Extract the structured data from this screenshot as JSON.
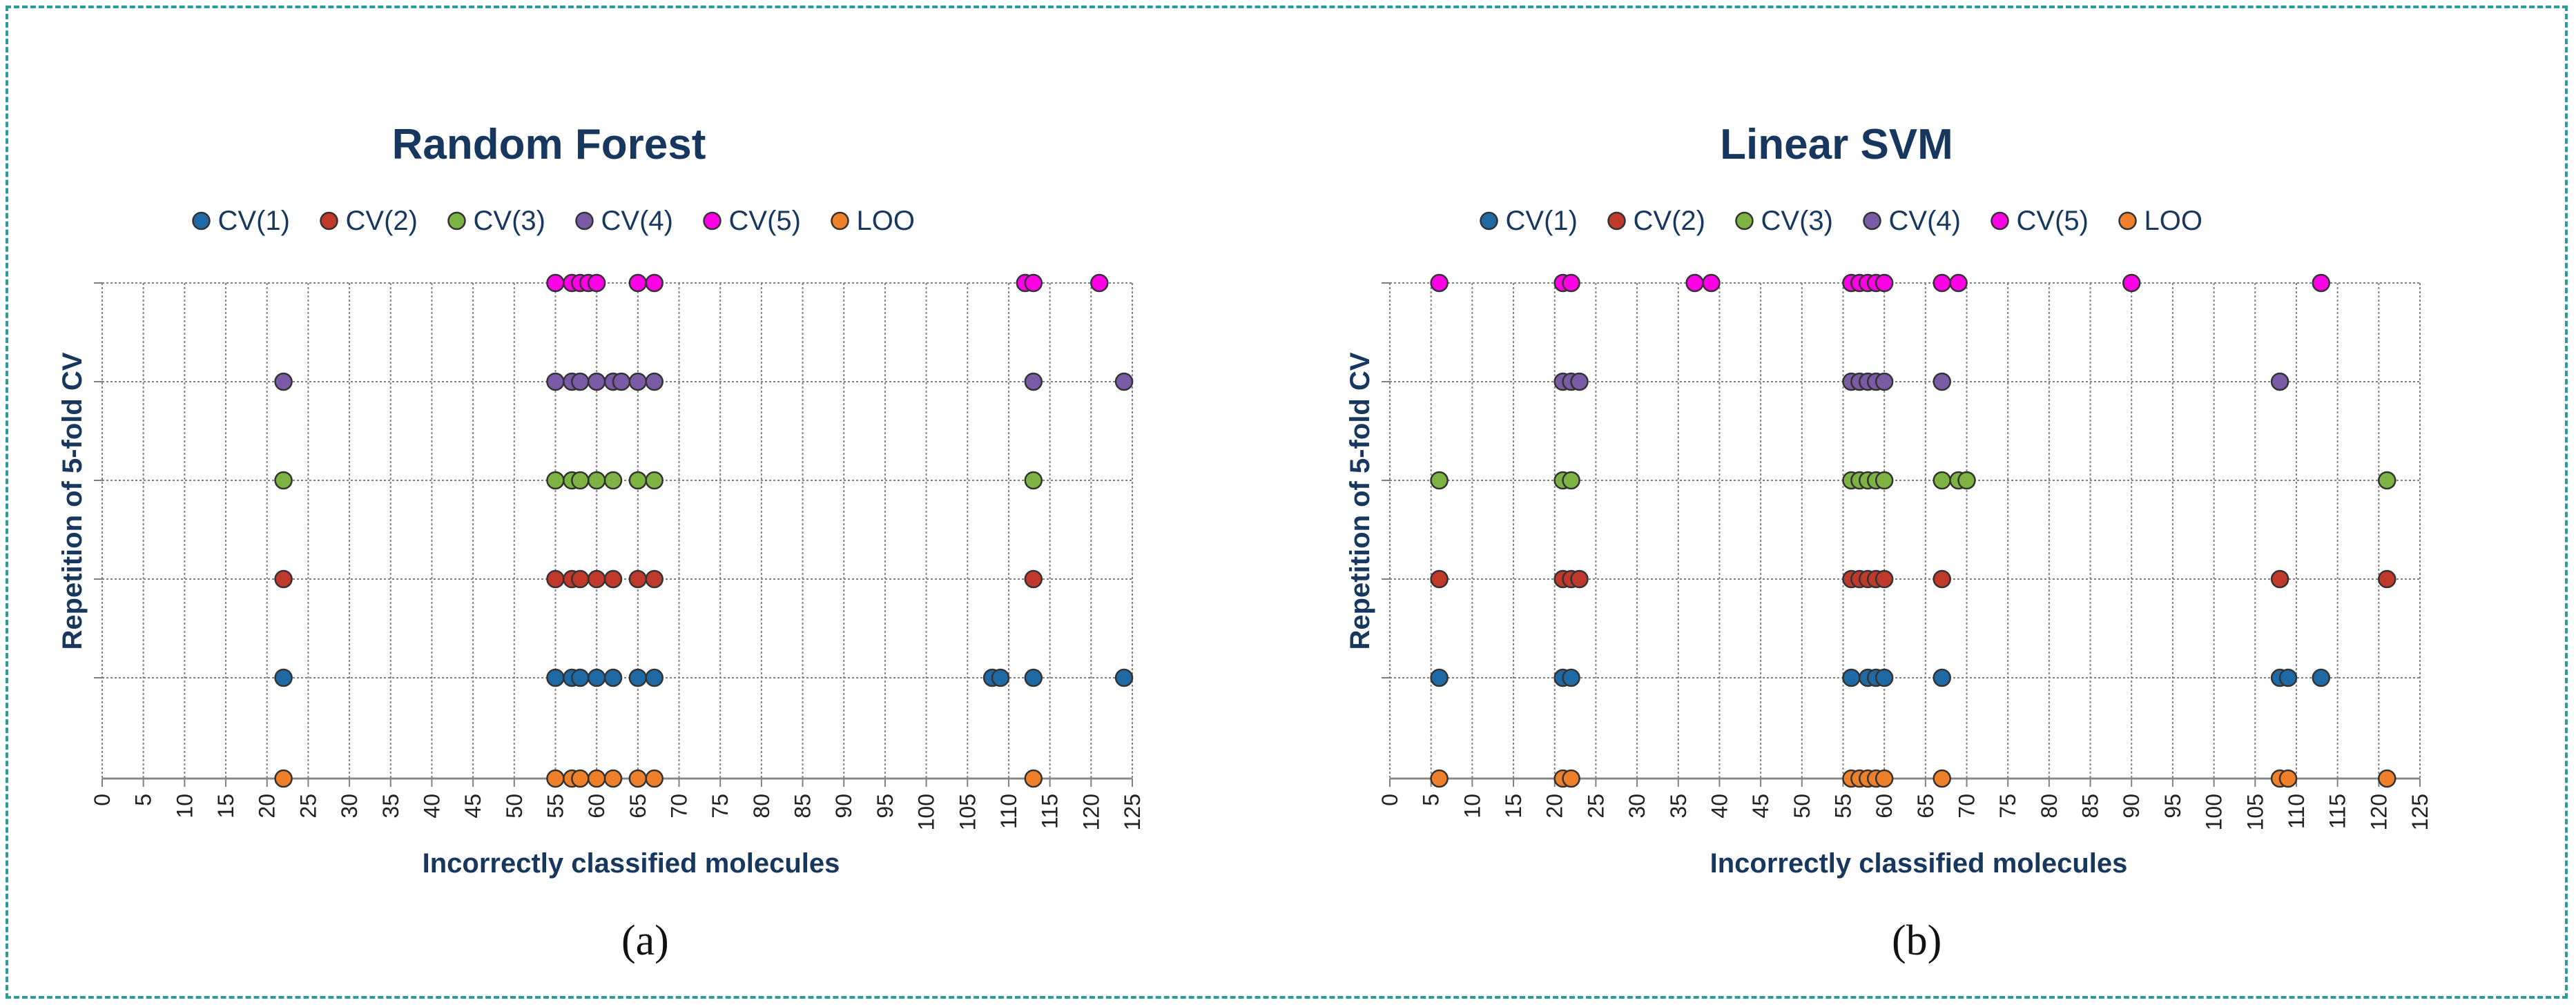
{
  "colors": {
    "CV(1)": "#1f6aa5",
    "CV(2)": "#c0392b",
    "CV(3)": "#7cb342",
    "CV(4)": "#7b5aa6",
    "CV(5)": "#ff00e6",
    "LOO": "#f07f2a",
    "title": "#17375e",
    "grid": "#808080",
    "frame": "#2a9d9a"
  },
  "chart_data": [
    {
      "type": "scatter",
      "title": "Random Forest",
      "xlabel": "Incorrectly classified molecules",
      "ylabel": "Repetition of 5-fold CV",
      "xlim": [
        0,
        125
      ],
      "xticks": [
        "0",
        "5",
        "10",
        "15",
        "20",
        "25",
        "30",
        "35",
        "40",
        "45",
        "50",
        "55",
        "60",
        "65",
        "70",
        "75",
        "80",
        "85",
        "90",
        "95",
        "100",
        "105",
        "110",
        "115",
        "120",
        "125"
      ],
      "legend": [
        "CV(1)",
        "CV(2)",
        "CV(3)",
        "CV(4)",
        "CV(5)",
        "LOO"
      ],
      "sublabel": "(a)",
      "series": [
        {
          "name": "CV(5)",
          "row": 5,
          "x": [
            55,
            57,
            58,
            59,
            60,
            65,
            67,
            112,
            113,
            121
          ]
        },
        {
          "name": "CV(4)",
          "row": 4,
          "x": [
            22,
            55,
            57,
            58,
            60,
            62,
            63,
            65,
            67,
            113,
            124
          ]
        },
        {
          "name": "CV(3)",
          "row": 3,
          "x": [
            22,
            55,
            57,
            58,
            60,
            62,
            65,
            67,
            113
          ]
        },
        {
          "name": "CV(2)",
          "row": 2,
          "x": [
            22,
            55,
            57,
            58,
            60,
            62,
            65,
            67,
            113
          ]
        },
        {
          "name": "CV(1)",
          "row": 1,
          "x": [
            22,
            55,
            57,
            58,
            60,
            62,
            65,
            67,
            108,
            109,
            113,
            124
          ]
        },
        {
          "name": "LOO",
          "row": 0,
          "x": [
            22,
            55,
            57,
            58,
            60,
            62,
            65,
            67,
            113
          ]
        }
      ]
    },
    {
      "type": "scatter",
      "title": "Linear SVM",
      "xlabel": "Incorrectly classified molecules",
      "ylabel": "Repetition of 5-fold CV",
      "xlim": [
        0,
        125
      ],
      "xticks": [
        "0",
        "5",
        "10",
        "15",
        "20",
        "25",
        "30",
        "35",
        "40",
        "45",
        "50",
        "55",
        "60",
        "65",
        "70",
        "75",
        "80",
        "85",
        "90",
        "95",
        "100",
        "105",
        "110",
        "115",
        "120",
        "125"
      ],
      "legend": [
        "CV(1)",
        "CV(2)",
        "CV(3)",
        "CV(4)",
        "CV(5)",
        "LOO"
      ],
      "sublabel": "(b)",
      "series": [
        {
          "name": "CV(5)",
          "row": 5,
          "x": [
            6,
            21,
            22,
            37,
            39,
            56,
            57,
            58,
            59,
            60,
            67,
            69,
            90,
            113
          ]
        },
        {
          "name": "CV(4)",
          "row": 4,
          "x": [
            21,
            22,
            23,
            56,
            57,
            58,
            59,
            60,
            67,
            108
          ]
        },
        {
          "name": "CV(3)",
          "row": 3,
          "x": [
            6,
            21,
            22,
            56,
            57,
            58,
            59,
            60,
            67,
            69,
            70,
            121
          ]
        },
        {
          "name": "CV(2)",
          "row": 2,
          "x": [
            6,
            21,
            22,
            23,
            56,
            57,
            58,
            59,
            60,
            67,
            108,
            121
          ]
        },
        {
          "name": "CV(1)",
          "row": 1,
          "x": [
            6,
            21,
            22,
            56,
            58,
            59,
            60,
            67,
            108,
            109,
            113
          ]
        },
        {
          "name": "LOO",
          "row": 0,
          "x": [
            6,
            21,
            22,
            56,
            57,
            58,
            59,
            60,
            67,
            108,
            109,
            121
          ]
        }
      ]
    }
  ]
}
